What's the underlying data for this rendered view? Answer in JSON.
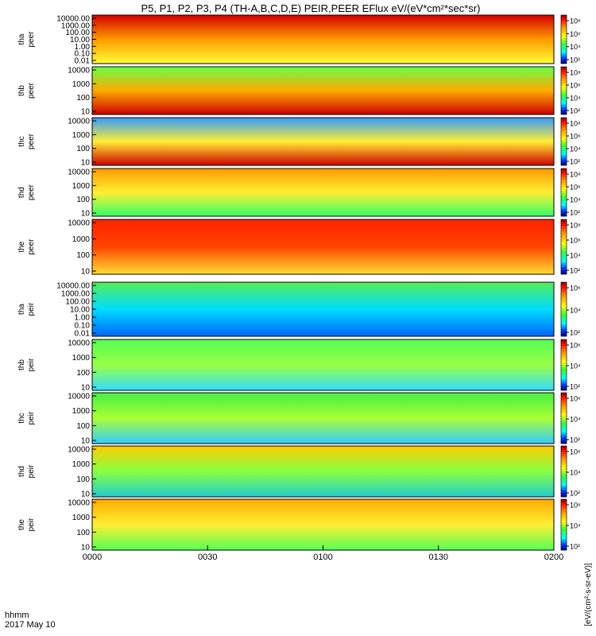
{
  "title": "P5, P1, P2, P3, P4 (TH-A,B,C,D,E) PEIR,PEER EFlux eV/(eV*cm²*sec*sr)",
  "time_axis": {
    "label_top": "hhmm",
    "label_bottom": "2017 May 10",
    "ticks": [
      "0000",
      "0030",
      "0100",
      "0130",
      "0200"
    ]
  },
  "colorbar_label": "[eV/(cm²-s-sr-eV)]",
  "chart_data": [
    {
      "type": "heatmap",
      "ylabel_top": "tha",
      "ylabel_bottom": "peer",
      "y_ticks": [
        "10000.00",
        "1000.00",
        "100.00",
        "10.00",
        "1.00",
        "0.10",
        "0.01"
      ],
      "colorbar_ticks": [
        "10⁸",
        "10⁶",
        "10⁴",
        "10²"
      ]
    },
    {
      "type": "heatmap",
      "ylabel_top": "thb",
      "ylabel_bottom": "peer",
      "y_ticks": [
        "10000",
        "1000",
        "100",
        "10"
      ],
      "colorbar_ticks": [
        "10⁸",
        "10⁶",
        "10⁴",
        "10²"
      ]
    },
    {
      "type": "heatmap",
      "ylabel_top": "thc",
      "ylabel_bottom": "peer",
      "y_ticks": [
        "10000",
        "1000",
        "100",
        "10"
      ],
      "colorbar_ticks": [
        "10⁸",
        "10⁶",
        "10⁴",
        "10²"
      ]
    },
    {
      "type": "heatmap",
      "ylabel_top": "thd",
      "ylabel_bottom": "peer",
      "y_ticks": [
        "10000",
        "1000",
        "100",
        "10"
      ],
      "colorbar_ticks": [
        "10⁸",
        "10⁶",
        "10⁴",
        "10²"
      ]
    },
    {
      "type": "heatmap",
      "ylabel_top": "the",
      "ylabel_bottom": "peer",
      "y_ticks": [
        "10000",
        "1000",
        "100",
        "10"
      ],
      "colorbar_ticks": [
        "10⁸",
        "10⁶",
        "10⁴",
        "10²"
      ]
    },
    {
      "type": "heatmap",
      "ylabel_top": "tha",
      "ylabel_bottom": "peir",
      "y_ticks": [
        "10000.00",
        "1000.00",
        "100.00",
        "10.00",
        "1.00",
        "0.10",
        "0.01"
      ],
      "colorbar_ticks": [
        "10⁶",
        "10⁴",
        "10²"
      ]
    },
    {
      "type": "heatmap",
      "ylabel_top": "thb",
      "ylabel_bottom": "peir",
      "y_ticks": [
        "10000",
        "1000",
        "100",
        "10"
      ],
      "colorbar_ticks": [
        "10⁶",
        "10⁴",
        "10²"
      ]
    },
    {
      "type": "heatmap",
      "ylabel_top": "thc",
      "ylabel_bottom": "peir",
      "y_ticks": [
        "10000",
        "1000",
        "100",
        "10"
      ],
      "colorbar_ticks": [
        "10⁶",
        "10⁴",
        "10²"
      ]
    },
    {
      "type": "heatmap",
      "ylabel_top": "thd",
      "ylabel_bottom": "peir",
      "y_ticks": [
        "10000",
        "1000",
        "100",
        "10"
      ],
      "colorbar_ticks": [
        "10⁶",
        "10⁴",
        "10²"
      ]
    },
    {
      "type": "heatmap",
      "ylabel_top": "the",
      "ylabel_bottom": "peir",
      "y_ticks": [
        "10000",
        "1000",
        "100",
        "10"
      ],
      "colorbar_ticks": [
        "10⁶",
        "10⁴",
        "10²"
      ]
    }
  ]
}
